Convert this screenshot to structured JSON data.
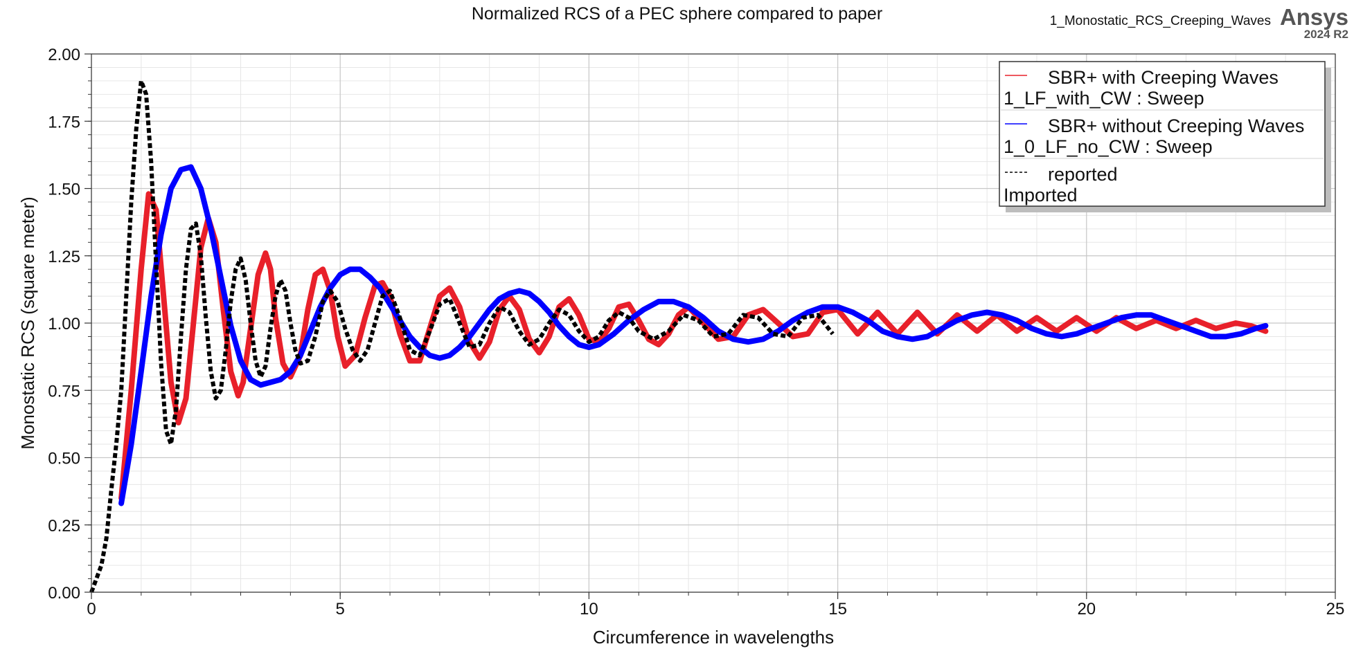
{
  "header": {
    "title": "Normalized RCS of a PEC sphere compared to paper",
    "design_name": "1_Monostatic_RCS_Creeping_Waves",
    "brand": "Ansys",
    "version": "2024 R2"
  },
  "legend": {
    "entries": [
      {
        "label": "SBR+ with Creeping Waves",
        "source": "1_LF_with_CW : Sweep",
        "color": "#e8202a",
        "dash": "solid"
      },
      {
        "label": "SBR+ without Creeping Waves",
        "source": "1_0_LF_no_CW : Sweep",
        "color": "#0000ff",
        "dash": "solid"
      },
      {
        "label": "reported",
        "source": "Imported",
        "color": "#000000",
        "dash": "dashed"
      }
    ]
  },
  "chart_data": {
    "type": "line",
    "title": "Normalized RCS of a PEC sphere compared to paper",
    "xlabel": "Circumference in wavelengths",
    "ylabel": "Monostatic RCS (square meter)",
    "xlim": [
      0,
      25
    ],
    "ylim": [
      0,
      2
    ],
    "xticks": [
      "0",
      "5",
      "10",
      "15",
      "20",
      "25"
    ],
    "yticks": [
      "0.00",
      "0.25",
      "0.50",
      "0.75",
      "1.00",
      "1.25",
      "1.50",
      "1.75",
      "2.00"
    ],
    "grid": true,
    "legend_position": "top-right",
    "series": [
      {
        "name": "SBR+ with Creeping Waves",
        "color": "#e8202a",
        "x": [
          0.6,
          0.8,
          1.0,
          1.15,
          1.3,
          1.45,
          1.6,
          1.75,
          1.9,
          2.05,
          2.2,
          2.35,
          2.5,
          2.65,
          2.8,
          2.95,
          3.05,
          3.2,
          3.35,
          3.5,
          3.6,
          3.7,
          3.85,
          4.0,
          4.2,
          4.35,
          4.5,
          4.65,
          4.8,
          4.95,
          5.1,
          5.3,
          5.5,
          5.7,
          5.85,
          6.0,
          6.2,
          6.4,
          6.6,
          6.8,
          7.0,
          7.2,
          7.4,
          7.6,
          7.8,
          8.0,
          8.2,
          8.4,
          8.6,
          8.8,
          9.0,
          9.2,
          9.4,
          9.6,
          9.8,
          10.0,
          10.2,
          10.4,
          10.6,
          10.8,
          11.0,
          11.2,
          11.4,
          11.6,
          11.8,
          12.0,
          12.3,
          12.6,
          12.9,
          13.2,
          13.5,
          13.8,
          14.1,
          14.4,
          14.7,
          15.0,
          15.4,
          15.8,
          16.2,
          16.6,
          17.0,
          17.4,
          17.8,
          18.2,
          18.6,
          19.0,
          19.4,
          19.8,
          20.2,
          20.6,
          21.0,
          21.4,
          21.8,
          22.2,
          22.6,
          23.0,
          23.3,
          23.6
        ],
        "y": [
          0.35,
          0.75,
          1.2,
          1.48,
          1.42,
          1.1,
          0.78,
          0.63,
          0.72,
          1.0,
          1.28,
          1.39,
          1.3,
          1.05,
          0.82,
          0.73,
          0.78,
          0.98,
          1.18,
          1.26,
          1.2,
          1.02,
          0.85,
          0.8,
          0.88,
          1.05,
          1.18,
          1.2,
          1.12,
          0.95,
          0.84,
          0.88,
          1.02,
          1.14,
          1.15,
          1.1,
          0.96,
          0.86,
          0.86,
          0.98,
          1.1,
          1.13,
          1.06,
          0.93,
          0.87,
          0.93,
          1.05,
          1.1,
          1.05,
          0.94,
          0.89,
          0.95,
          1.06,
          1.09,
          1.03,
          0.94,
          0.93,
          0.98,
          1.06,
          1.07,
          1.01,
          0.94,
          0.92,
          0.96,
          1.03,
          1.06,
          1.0,
          0.94,
          0.95,
          1.03,
          1.05,
          1.0,
          0.95,
          0.96,
          1.04,
          1.05,
          0.96,
          1.04,
          0.96,
          1.04,
          0.96,
          1.03,
          0.97,
          1.03,
          0.97,
          1.02,
          0.97,
          1.02,
          0.97,
          1.02,
          0.98,
          1.01,
          0.98,
          1.01,
          0.98,
          1.0,
          0.99,
          0.97
        ]
      },
      {
        "name": "SBR+ without Creeping Waves",
        "color": "#0000ff",
        "x": [
          0.6,
          0.8,
          1.0,
          1.2,
          1.4,
          1.6,
          1.8,
          2.0,
          2.2,
          2.4,
          2.6,
          2.8,
          3.0,
          3.2,
          3.4,
          3.6,
          3.8,
          4.0,
          4.2,
          4.4,
          4.6,
          4.8,
          5.0,
          5.2,
          5.4,
          5.6,
          5.8,
          6.0,
          6.2,
          6.4,
          6.6,
          6.8,
          7.0,
          7.2,
          7.4,
          7.6,
          7.8,
          8.0,
          8.2,
          8.4,
          8.6,
          8.8,
          9.0,
          9.2,
          9.4,
          9.6,
          9.8,
          10.0,
          10.2,
          10.5,
          10.8,
          11.1,
          11.4,
          11.7,
          12.0,
          12.3,
          12.6,
          12.9,
          13.2,
          13.5,
          13.8,
          14.1,
          14.4,
          14.7,
          15.0,
          15.3,
          15.6,
          15.9,
          16.2,
          16.5,
          16.8,
          17.1,
          17.4,
          17.7,
          18.0,
          18.3,
          18.6,
          18.9,
          19.2,
          19.5,
          19.8,
          20.1,
          20.4,
          20.7,
          21.0,
          21.3,
          21.6,
          21.9,
          22.2,
          22.5,
          22.8,
          23.1,
          23.4,
          23.6
        ],
        "y": [
          0.33,
          0.55,
          0.82,
          1.1,
          1.33,
          1.5,
          1.57,
          1.58,
          1.5,
          1.35,
          1.17,
          0.99,
          0.86,
          0.79,
          0.77,
          0.78,
          0.79,
          0.82,
          0.88,
          0.97,
          1.06,
          1.13,
          1.18,
          1.2,
          1.2,
          1.17,
          1.13,
          1.07,
          1.01,
          0.95,
          0.91,
          0.88,
          0.87,
          0.88,
          0.91,
          0.95,
          1.0,
          1.05,
          1.09,
          1.11,
          1.12,
          1.11,
          1.08,
          1.04,
          0.99,
          0.95,
          0.92,
          0.91,
          0.92,
          0.96,
          1.01,
          1.05,
          1.08,
          1.08,
          1.06,
          1.02,
          0.97,
          0.94,
          0.93,
          0.94,
          0.97,
          1.01,
          1.04,
          1.06,
          1.06,
          1.04,
          1.01,
          0.97,
          0.95,
          0.94,
          0.95,
          0.98,
          1.01,
          1.03,
          1.04,
          1.03,
          1.01,
          0.98,
          0.96,
          0.95,
          0.96,
          0.98,
          1.0,
          1.02,
          1.03,
          1.03,
          1.01,
          0.99,
          0.97,
          0.95,
          0.95,
          0.96,
          0.98,
          0.99
        ]
      },
      {
        "name": "reported",
        "color": "#000000",
        "x": [
          0.0,
          0.1,
          0.2,
          0.3,
          0.4,
          0.5,
          0.6,
          0.7,
          0.8,
          0.9,
          1.0,
          1.1,
          1.2,
          1.3,
          1.4,
          1.5,
          1.6,
          1.7,
          1.8,
          1.9,
          2.0,
          2.1,
          2.2,
          2.3,
          2.4,
          2.5,
          2.6,
          2.7,
          2.8,
          2.9,
          3.0,
          3.1,
          3.2,
          3.3,
          3.4,
          3.5,
          3.6,
          3.7,
          3.8,
          3.9,
          4.0,
          4.1,
          4.2,
          4.35,
          4.5,
          4.65,
          4.8,
          4.95,
          5.1,
          5.25,
          5.4,
          5.55,
          5.7,
          5.85,
          6.0,
          6.2,
          6.4,
          6.6,
          6.8,
          7.0,
          7.2,
          7.4,
          7.6,
          7.8,
          8.0,
          8.2,
          8.4,
          8.6,
          8.8,
          9.0,
          9.2,
          9.4,
          9.6,
          9.8,
          10.0,
          10.2,
          10.4,
          10.6,
          10.8,
          11.0,
          11.3,
          11.6,
          11.9,
          12.2,
          12.5,
          12.8,
          13.1,
          13.4,
          13.7,
          14.0,
          14.3,
          14.6,
          14.9
        ],
        "y": [
          0.0,
          0.05,
          0.1,
          0.2,
          0.38,
          0.55,
          0.75,
          1.1,
          1.45,
          1.72,
          1.9,
          1.85,
          1.6,
          1.22,
          0.85,
          0.6,
          0.55,
          0.68,
          0.95,
          1.2,
          1.35,
          1.37,
          1.25,
          1.02,
          0.82,
          0.72,
          0.75,
          0.9,
          1.08,
          1.2,
          1.24,
          1.16,
          1.0,
          0.86,
          0.8,
          0.84,
          0.98,
          1.1,
          1.16,
          1.12,
          1.0,
          0.9,
          0.85,
          0.86,
          0.95,
          1.08,
          1.12,
          1.08,
          0.98,
          0.9,
          0.86,
          0.9,
          1.0,
          1.1,
          1.12,
          1.02,
          0.9,
          0.88,
          0.97,
          1.07,
          1.09,
          1.0,
          0.91,
          0.92,
          1.0,
          1.06,
          1.04,
          0.97,
          0.92,
          0.94,
          1.0,
          1.05,
          1.03,
          0.97,
          0.93,
          0.95,
          1.01,
          1.04,
          1.02,
          0.97,
          0.94,
          0.97,
          1.03,
          1.01,
          0.95,
          0.96,
          1.03,
          1.02,
          0.96,
          0.95,
          1.02,
          1.03,
          0.96
        ]
      }
    ]
  }
}
